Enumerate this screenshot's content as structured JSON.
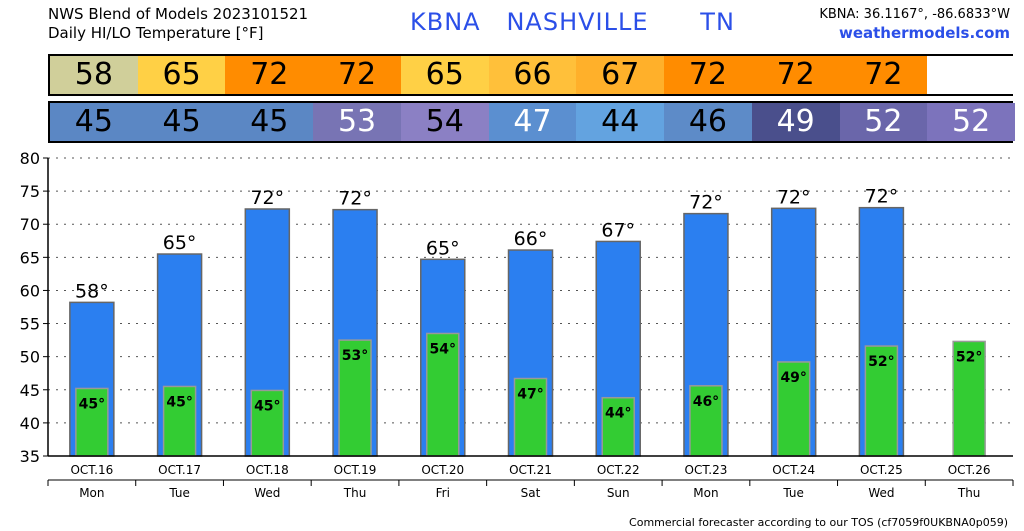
{
  "header": {
    "line1": "NWS Blend of Models 2023101521",
    "line2": "Daily HI/LO Temperature [°F]",
    "station": "KBNA   NASHVILLE      TN",
    "coords": "KBNA: 36.1167°, -86.6833°W",
    "site": "weathermodels.com"
  },
  "footer": "Commercial forecaster according to our TOS (cf7059f0UKBNA0p059)",
  "hi_strip": {
    "values": [
      "58",
      "65",
      "72",
      "72",
      "65",
      "66",
      "67",
      "72",
      "72",
      "72",
      ""
    ],
    "colors": [
      "#d0cf9a",
      "#ffd045",
      "#ff8c00",
      "#ff8c00",
      "#ffd045",
      "#ffc03a",
      "#ffb02a",
      "#ff8c00",
      "#ff8c00",
      "#ff8c00",
      "#ffffff"
    ]
  },
  "lo_strip": {
    "values": [
      "45",
      "45",
      "45",
      "53",
      "54",
      "47",
      "44",
      "46",
      "49",
      "52",
      "52"
    ],
    "colors": [
      "#5b87c4",
      "#5b87c4",
      "#5b87c4",
      "#7874b4",
      "#8b80c4",
      "#5b8fd0",
      "#63a3e0",
      "#5d8bc8",
      "#4a4f8c",
      "#6a66aa",
      "#7c73bc"
    ],
    "text_colors": [
      "#000",
      "#000",
      "#000",
      "#fff",
      "#000",
      "#fff",
      "#000",
      "#000",
      "#fff",
      "#fff",
      "#fff"
    ]
  },
  "chart_data": {
    "type": "bar",
    "categories": [
      "OCT.16",
      "OCT.17",
      "OCT.18",
      "OCT.19",
      "OCT.20",
      "OCT.21",
      "OCT.22",
      "OCT.23",
      "OCT.24",
      "OCT.25",
      "OCT.26"
    ],
    "weekdays": [
      "Mon",
      "Tue",
      "Wed",
      "Thu",
      "Fri",
      "Sat",
      "Sun",
      "Mon",
      "Tue",
      "Wed",
      "Thu"
    ],
    "series": [
      {
        "values": [
          58.2,
          65.5,
          72.3,
          72.2,
          64.7,
          66.1,
          67.4,
          71.6,
          72.4,
          72.5,
          null
        ],
        "labels": [
          "58°",
          "65°",
          "72°",
          "72°",
          "65°",
          "66°",
          "67°",
          "72°",
          "72°",
          "72°",
          ""
        ],
        "color": "#2b7ff0"
      },
      {
        "values": [
          45.2,
          45.5,
          44.9,
          52.5,
          53.5,
          46.7,
          43.8,
          45.6,
          49.2,
          51.6,
          52.3
        ],
        "labels": [
          "45°",
          "45°",
          "45°",
          "53°",
          "54°",
          "47°",
          "44°",
          "46°",
          "49°",
          "52°",
          "52°"
        ],
        "color": "#33cc33"
      }
    ],
    "ylim": [
      35,
      80
    ],
    "yticks": [
      35,
      40,
      45,
      50,
      55,
      60,
      65,
      70,
      75,
      80
    ],
    "grid": true
  }
}
